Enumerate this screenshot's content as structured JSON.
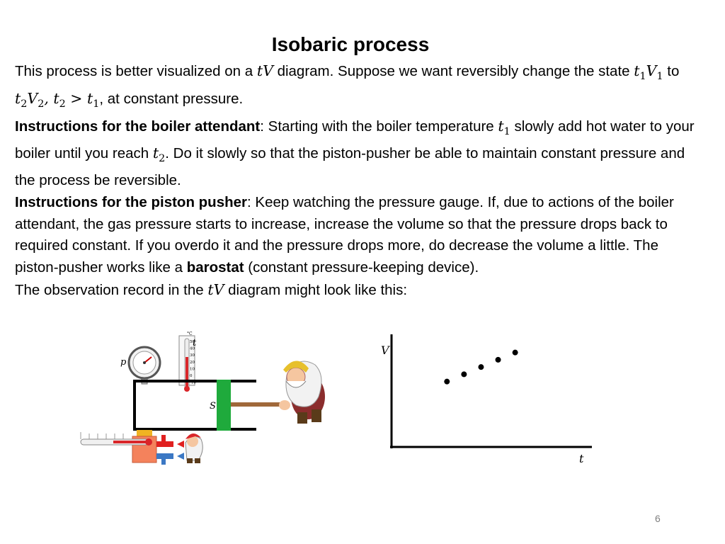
{
  "slide": {
    "title": "Isobaric process",
    "page_number": "6"
  },
  "text": {
    "p1_a": "This process is better visualized on a ",
    "p1_math1": "tV",
    "p1_b": " diagram. Suppose we want reversibly change the state ",
    "p1_t1": "t",
    "p1_t1_sub": "1",
    "p1_v1": "V",
    "p1_v1_sub": "1",
    "p1_to": " to ",
    "p1_t2": "t",
    "p1_t2_sub": "2",
    "p1_v2": "V",
    "p1_v2_sub": "2",
    "p1_comma": ",  ",
    "p1_ineq_t2": "t",
    "p1_ineq_t2_sub": "2",
    "p1_gt": " > ",
    "p1_ineq_t1": "t",
    "p1_ineq_t1_sub": "1",
    "p1_end": ", at constant pressure.",
    "p2_bold": "Instructions for the boiler attendant",
    "p2_a": ": Starting with the boiler temperature ",
    "p2_t1": "t",
    "p2_t1_sub": "1",
    "p2_b": " slowly add hot water to your boiler until you reach ",
    "p2_t2": "t",
    "p2_t2_sub": "2",
    "p2_c": ". Do it slowly so that the piston-pusher be able to maintain constant pressure and the process be reversible.",
    "p3_bold": "Instructions for the piston pusher",
    "p3_a": ": Keep watching the pressure gauge. If, due to actions of the boiler attendant, the gas pressure starts to increase, increase the volume so that the pressure drops back to required constant. If you overdo it and the pressure drops more, do decrease the volume a little. The piston-pusher works like a ",
    "p3_bold2": "barostat",
    "p3_b": " (constant pressure-keeping device).",
    "p4_a": "The observation record in the ",
    "p4_math": "tV",
    "p4_b": " diagram might look like this:"
  },
  "apparatus": {
    "gauge_label": "p",
    "thermometer_label": "t",
    "thermometer_unit": "°C",
    "thermometer_ticks": [
      "50",
      "40",
      "30",
      "20",
      "10",
      "0",
      "-10"
    ],
    "piston_label": "S",
    "colors": {
      "piston": "#1faa3c",
      "thermometer_fluid": "#d9262a",
      "boiler": "#f4825c",
      "boiler_top": "#f0b323",
      "hot_tap": "#e02020",
      "cold_tap": "#3b78c4"
    }
  },
  "chart_data": {
    "type": "scatter",
    "xlabel": "t",
    "ylabel": "V",
    "grid": false,
    "axis_ticks": false,
    "points": [
      {
        "x": 1,
        "y": 1
      },
      {
        "x": 2,
        "y": 2
      },
      {
        "x": 3,
        "y": 3
      },
      {
        "x": 4,
        "y": 4
      },
      {
        "x": 5,
        "y": 5
      }
    ],
    "xlim": [
      -2.25,
      9.5
    ],
    "ylim": [
      -8.0,
      7.5
    ]
  }
}
